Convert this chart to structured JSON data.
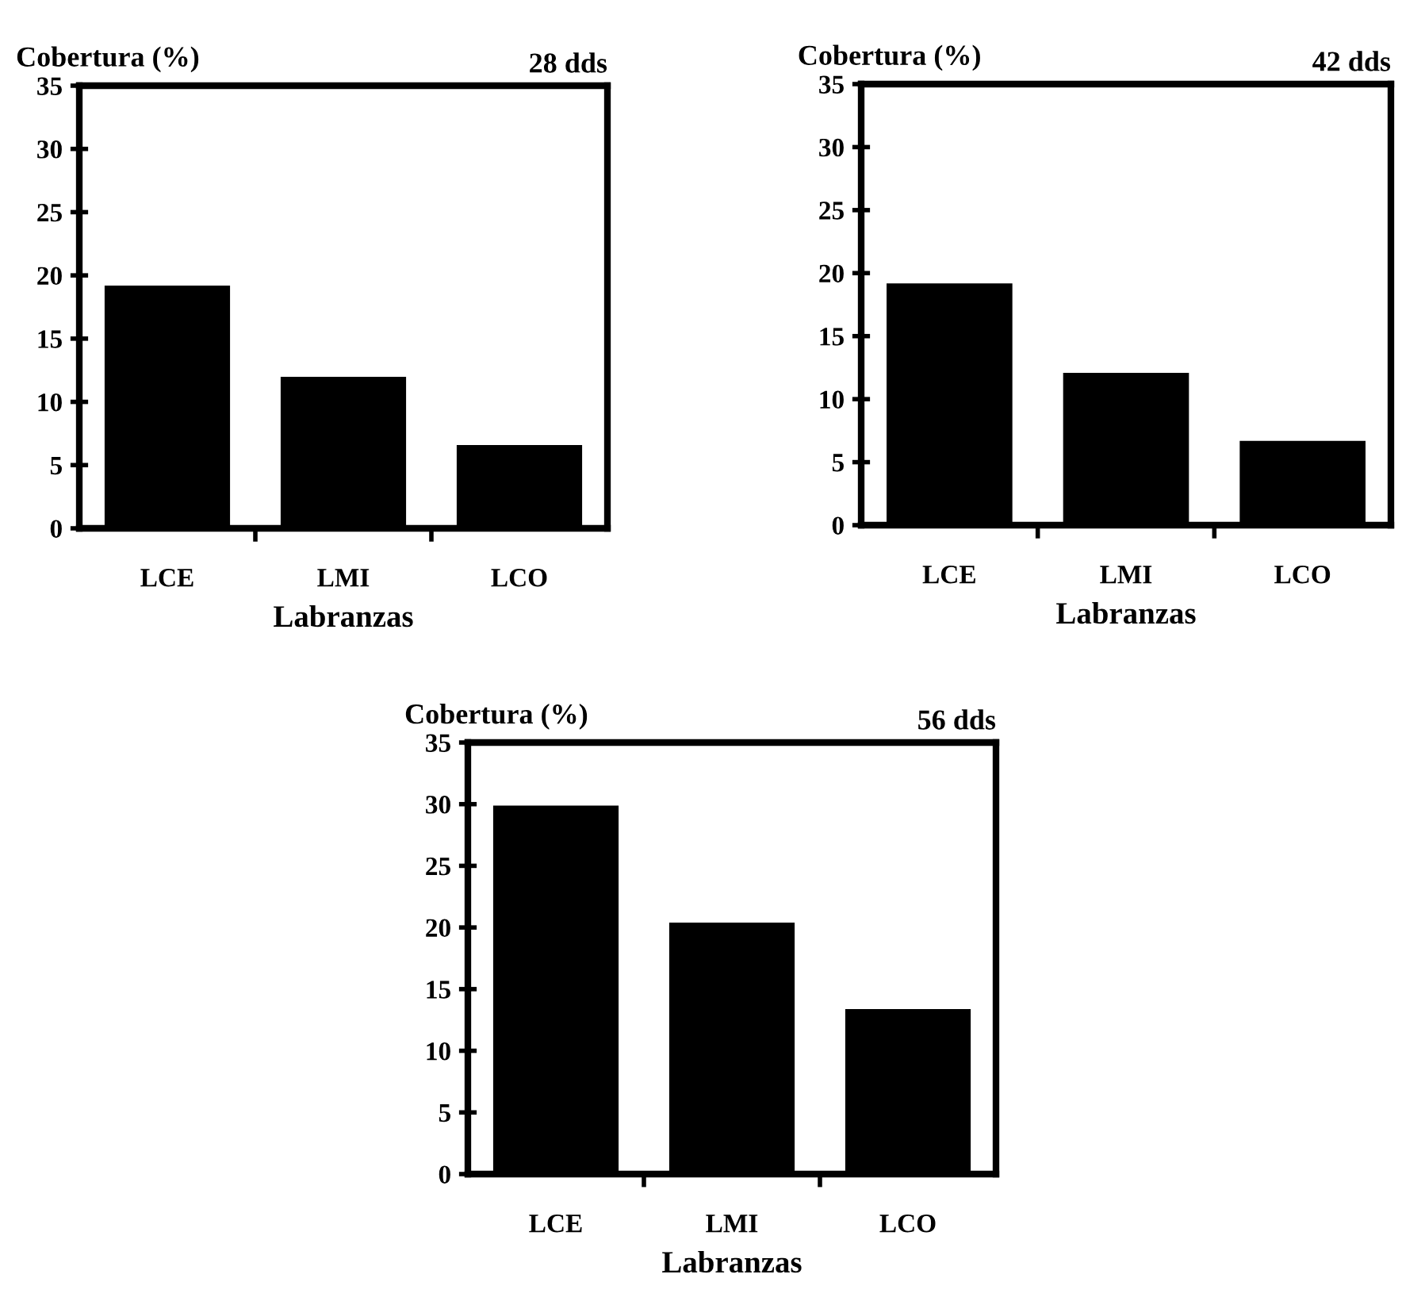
{
  "chart_data": [
    {
      "type": "bar",
      "title": "28 dds",
      "ylabel": "Cobertura (%)",
      "xlabel": "Labranzas",
      "categories": [
        "LCE",
        "LMI",
        "LCO"
      ],
      "values": [
        19.1,
        11.9,
        6.5
      ],
      "color": "#000000",
      "ylim": [
        0,
        35
      ],
      "yticks": [
        0,
        5,
        10,
        15,
        20,
        25,
        30,
        35
      ],
      "grid": false
    },
    {
      "type": "bar",
      "title": "42 dds",
      "ylabel": "Cobertura (%)",
      "xlabel": "Labranzas",
      "categories": [
        "LCE",
        "LMI",
        "LCO"
      ],
      "values": [
        19.1,
        12.0,
        6.6
      ],
      "color": "#000000",
      "ylim": [
        0,
        35
      ],
      "yticks": [
        0,
        5,
        10,
        15,
        20,
        25,
        30,
        35
      ],
      "grid": false
    },
    {
      "type": "bar",
      "title": "56 dds",
      "ylabel": "Cobertura (%)",
      "xlabel": "Labranzas",
      "categories": [
        "LCE",
        "LMI",
        "LCO"
      ],
      "values": [
        29.8,
        20.3,
        13.3
      ],
      "color": "#000000",
      "ylim": [
        0,
        35
      ],
      "yticks": [
        0,
        5,
        10,
        15,
        20,
        25,
        30,
        35
      ],
      "grid": false
    }
  ]
}
